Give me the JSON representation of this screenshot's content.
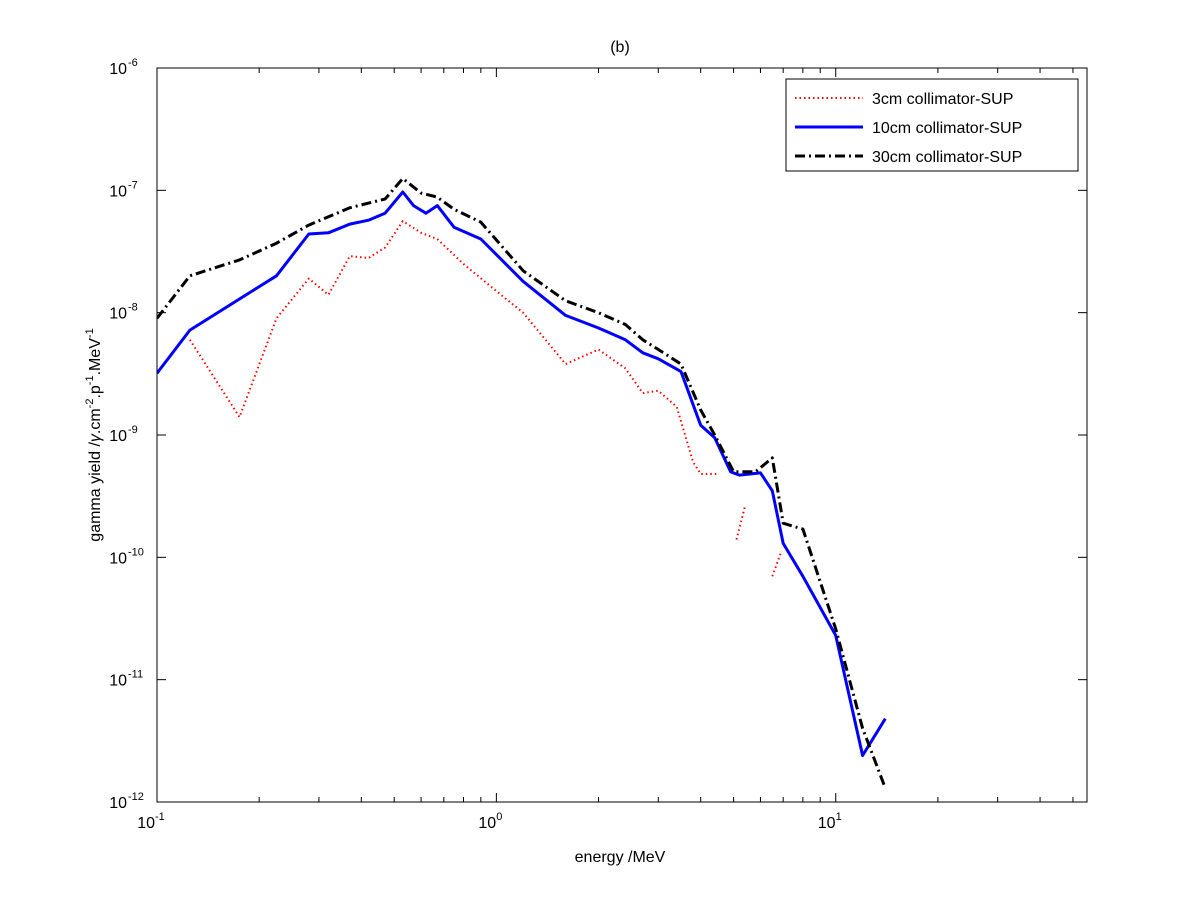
{
  "chart_data": {
    "type": "line",
    "title": "(b)",
    "xlabel": "energy /MeV",
    "ylabel": {
      "pre": "gamma yield /",
      "gamma": "γ",
      "mid1": ".cm",
      "sup1": "-2",
      "mid2": ".p",
      "sup2": "-1",
      "mid3": ".MeV",
      "sup3": "-1"
    },
    "x_scale": "log",
    "y_scale": "log",
    "xlim": [
      0.1,
      55
    ],
    "ylim": [
      1e-12,
      1e-06
    ],
    "grid": false,
    "legend_position": "top-right",
    "x_ticks": [
      {
        "value": 0.1,
        "base": "10",
        "exp": "-1"
      },
      {
        "value": 1,
        "base": "10",
        "exp": "0"
      },
      {
        "value": 10,
        "base": "10",
        "exp": "1"
      }
    ],
    "y_ticks": [
      {
        "value": 1e-12,
        "base": "10",
        "exp": "-12"
      },
      {
        "value": 1e-11,
        "base": "10",
        "exp": "-11"
      },
      {
        "value": 1e-10,
        "base": "10",
        "exp": "-10"
      },
      {
        "value": 1e-09,
        "base": "10",
        "exp": "-9"
      },
      {
        "value": 1e-08,
        "base": "10",
        "exp": "-8"
      },
      {
        "value": 1e-07,
        "base": "10",
        "exp": "-7"
      },
      {
        "value": 1e-06,
        "base": "10",
        "exp": "-6"
      }
    ],
    "series": [
      {
        "name": "3cm collimator-SUP",
        "color": "#ff0000",
        "style": "dotted",
        "segments": [
          [
            [
              0.125,
              6e-09
            ],
            [
              0.175,
              1.4e-09
            ],
            [
              0.225,
              9e-09
            ],
            [
              0.28,
              1.9e-08
            ],
            [
              0.32,
              1.4e-08
            ],
            [
              0.37,
              2.9e-08
            ],
            [
              0.42,
              2.8e-08
            ],
            [
              0.47,
              3.4e-08
            ],
            [
              0.53,
              5.6e-08
            ],
            [
              0.6,
              4.5e-08
            ],
            [
              0.67,
              4e-08
            ],
            [
              0.8,
              2.5e-08
            ],
            [
              1.0,
              1.5e-08
            ],
            [
              1.2,
              1e-08
            ],
            [
              1.6,
              3.8e-09
            ],
            [
              2.0,
              5e-09
            ],
            [
              2.4,
              3.5e-09
            ],
            [
              2.7,
              2.2e-09
            ],
            [
              3.0,
              2.3e-09
            ],
            [
              3.4,
              1.7e-09
            ],
            [
              3.8,
              6e-10
            ],
            [
              4.0,
              4.8e-10
            ],
            [
              4.5,
              4.8e-10
            ]
          ],
          [
            [
              5.1,
              1.4e-10
            ],
            [
              5.4,
              2.6e-10
            ]
          ],
          [
            [
              6.5,
              7e-11
            ],
            [
              6.9,
              1.1e-10
            ]
          ]
        ]
      },
      {
        "name": "10cm collimator-SUP",
        "color": "#0000ff",
        "style": "solid",
        "segments": [
          [
            [
              0.1,
              3.2e-09
            ],
            [
              0.125,
              7.2e-09
            ],
            [
              0.225,
              2e-08
            ],
            [
              0.28,
              4.4e-08
            ],
            [
              0.32,
              4.5e-08
            ],
            [
              0.37,
              5.3e-08
            ],
            [
              0.42,
              5.7e-08
            ],
            [
              0.47,
              6.5e-08
            ],
            [
              0.53,
              9.7e-08
            ],
            [
              0.57,
              7.5e-08
            ],
            [
              0.62,
              6.5e-08
            ],
            [
              0.67,
              7.5e-08
            ],
            [
              0.75,
              5e-08
            ],
            [
              0.9,
              4e-08
            ],
            [
              1.2,
              1.8e-08
            ],
            [
              1.6,
              9.5e-09
            ],
            [
              2.0,
              7.5e-09
            ],
            [
              2.4,
              6e-09
            ],
            [
              2.7,
              4.7e-09
            ],
            [
              3.0,
              4.2e-09
            ],
            [
              3.5,
              3.3e-09
            ],
            [
              4.0,
              1.2e-09
            ],
            [
              4.4,
              9.5e-10
            ],
            [
              4.9,
              5e-10
            ],
            [
              5.2,
              4.7e-10
            ],
            [
              6.0,
              4.9e-10
            ],
            [
              6.5,
              3.5e-10
            ],
            [
              7.0,
              1.3e-10
            ],
            [
              8.0,
              7e-11
            ],
            [
              10.0,
              2.3e-11
            ],
            [
              12.0,
              2.4e-12
            ],
            [
              14.0,
              4.8e-12
            ]
          ]
        ]
      },
      {
        "name": "30cm collimator-SUP",
        "color": "#000000",
        "style": "dashdot",
        "segments": [
          [
            [
              0.1,
              9e-09
            ],
            [
              0.125,
              2e-08
            ],
            [
              0.175,
              2.7e-08
            ],
            [
              0.225,
              3.7e-08
            ],
            [
              0.28,
              5.2e-08
            ],
            [
              0.37,
              7.2e-08
            ],
            [
              0.47,
              8.5e-08
            ],
            [
              0.53,
              1.25e-07
            ],
            [
              0.6,
              9.5e-08
            ],
            [
              0.67,
              8.8e-08
            ],
            [
              0.75,
              7e-08
            ],
            [
              0.9,
              5.5e-08
            ],
            [
              1.2,
              2.2e-08
            ],
            [
              1.6,
              1.25e-08
            ],
            [
              2.0,
              1e-08
            ],
            [
              2.4,
              8e-09
            ],
            [
              2.7,
              6e-09
            ],
            [
              3.0,
              5e-09
            ],
            [
              3.5,
              3.8e-09
            ],
            [
              4.0,
              1.6e-09
            ],
            [
              4.4,
              1e-09
            ],
            [
              5.0,
              5e-10
            ],
            [
              5.8,
              5e-10
            ],
            [
              6.5,
              6.5e-10
            ],
            [
              7.0,
              1.9e-10
            ],
            [
              8.0,
              1.7e-10
            ],
            [
              10.0,
              2.6e-11
            ],
            [
              12.0,
              4e-12
            ],
            [
              14.0,
              1.3e-12
            ]
          ]
        ]
      }
    ]
  }
}
